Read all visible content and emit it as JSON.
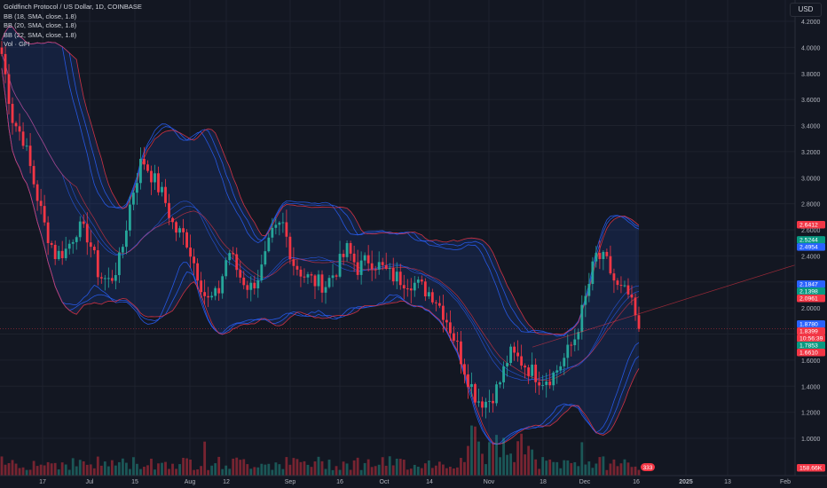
{
  "header": {
    "title": "Goldfinch Protocol / US Dollar, 1D, COINBASE",
    "indicators": [
      "BB (18, SMA, close, 1.8)",
      "BB (20, SMA, close, 1.8)",
      "BB (22, SMA, close, 1.8)",
      "Vol · GFI"
    ],
    "currency": "USD"
  },
  "colors": {
    "up": "#26a69a",
    "down": "#f23645",
    "band_blue": "#2962ff",
    "band_red": "#f23645",
    "bg": "#131722"
  },
  "chart_data": {
    "type": "candlestick",
    "y_ticks": [
      "4.2000",
      "4.0000",
      "3.8000",
      "3.6000",
      "3.4000",
      "3.2000",
      "3.0000",
      "2.8000",
      "2.6000",
      "2.4000",
      "2.2000",
      "2.0000",
      "1.8000",
      "1.6000",
      "1.4000",
      "1.2000",
      "1.0000"
    ],
    "ylim": [
      0.9,
      4.3
    ],
    "x_ticks": [
      "17",
      "Jul",
      "15",
      "Aug",
      "12",
      "Sep",
      "16",
      "Oct",
      "14",
      "Nov",
      "18",
      "Dec",
      "16",
      "2025",
      "13",
      "Feb"
    ],
    "price_tags": [
      {
        "text": "2.6412",
        "kind": "red"
      },
      {
        "text": "2.5244",
        "kind": "green"
      },
      {
        "text": "2.4954",
        "kind": "blue"
      },
      {
        "text": "2.1847",
        "kind": "blue"
      },
      {
        "text": "2.1398",
        "kind": "green"
      },
      {
        "text": "2.0961",
        "kind": "red"
      },
      {
        "text": "1.8780",
        "kind": "blue"
      },
      {
        "text": "1.8399",
        "kind": "red"
      },
      {
        "text": "10:56:39",
        "kind": "red"
      },
      {
        "text": "1.7853",
        "kind": "green"
      },
      {
        "text": "1.6610",
        "kind": "red"
      },
      {
        "text": "158.66K",
        "kind": "red"
      }
    ],
    "last_price": 1.8399,
    "volume_badge": "333",
    "price_path": [
      {
        "x": "start",
        "close": 3.95
      },
      {
        "x": "",
        "close": 3.45
      },
      {
        "x": "",
        "close": 3.3
      },
      {
        "x": "",
        "close": 2.95
      },
      {
        "x": "",
        "close": 2.62
      },
      {
        "x": "",
        "close": 2.4
      },
      {
        "x": "",
        "close": 2.45
      },
      {
        "x": "",
        "close": 2.62
      },
      {
        "x": "",
        "close": 2.55
      },
      {
        "x": "",
        "close": 2.25
      },
      {
        "x": "",
        "close": 2.2
      },
      {
        "x": "",
        "close": 2.38
      },
      {
        "x": "",
        "close": 2.85
      },
      {
        "x": "15",
        "close": 3.15
      },
      {
        "x": "",
        "close": 3.0
      },
      {
        "x": "",
        "close": 2.85
      },
      {
        "x": "",
        "close": 2.6
      },
      {
        "x": "",
        "close": 2.55
      },
      {
        "x": "",
        "close": 2.3
      },
      {
        "x": "",
        "close": 2.05
      },
      {
        "x": "",
        "close": 2.1
      },
      {
        "x": "",
        "close": 2.45
      },
      {
        "x": "",
        "close": 2.25
      },
      {
        "x": "",
        "close": 2.15
      },
      {
        "x": "",
        "close": 2.28
      },
      {
        "x": "",
        "close": 2.55
      },
      {
        "x": "",
        "close": 2.65
      },
      {
        "x": "",
        "close": 2.35
      },
      {
        "x": "",
        "close": 2.25
      },
      {
        "x": "",
        "close": 2.2
      },
      {
        "x": "",
        "close": 2.18
      },
      {
        "x": "",
        "close": 2.3
      },
      {
        "x": "",
        "close": 2.45
      },
      {
        "x": "",
        "close": 2.3
      },
      {
        "x": "",
        "close": 2.38
      },
      {
        "x": "",
        "close": 2.32
      },
      {
        "x": "",
        "close": 2.25
      },
      {
        "x": "",
        "close": 2.22
      },
      {
        "x": "",
        "close": 2.2
      },
      {
        "x": "",
        "close": 2.15
      },
      {
        "x": "",
        "close": 2.1
      },
      {
        "x": "",
        "close": 1.95
      },
      {
        "x": "",
        "close": 1.75
      },
      {
        "x": "",
        "close": 1.5
      },
      {
        "x": "Nov",
        "close": 1.3
      },
      {
        "x": "",
        "close": 1.28
      },
      {
        "x": "",
        "close": 1.4
      },
      {
        "x": "",
        "close": 1.65
      },
      {
        "x": "",
        "close": 1.6
      },
      {
        "x": "",
        "close": 1.52
      },
      {
        "x": "",
        "close": 1.45
      },
      {
        "x": "",
        "close": 1.48
      },
      {
        "x": "",
        "close": 1.6
      },
      {
        "x": "",
        "close": 1.75
      },
      {
        "x": "Dec",
        "close": 2.05
      },
      {
        "x": "",
        "close": 2.4
      },
      {
        "x": "",
        "close": 2.35
      },
      {
        "x": "",
        "close": 2.15
      },
      {
        "x": "",
        "close": 2.1
      },
      {
        "x": "16",
        "close": 1.84
      }
    ]
  }
}
